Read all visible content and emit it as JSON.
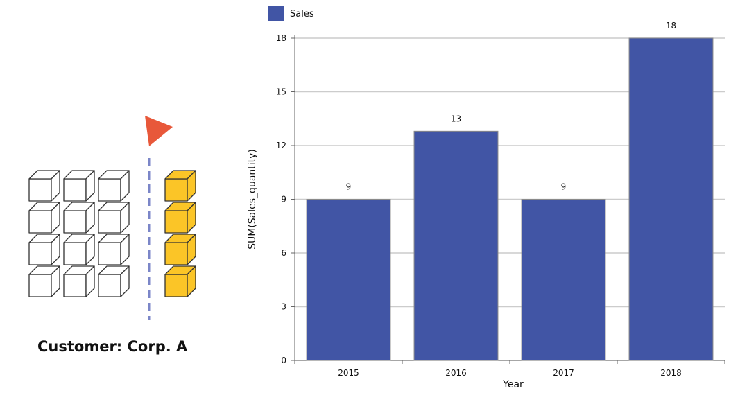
{
  "illustration": {
    "customer_label": "Customer: Corp. A",
    "cube_grid": {
      "rows": 4,
      "columns": 3
    },
    "highlighted_cubes": 4,
    "colors": {
      "flag": "#e8583a",
      "divider": "#7b86c8",
      "highlight": "#fbc527",
      "outline": "#333333"
    }
  },
  "chart_data": {
    "type": "bar",
    "categories": [
      "2015",
      "2016",
      "2017",
      "2018"
    ],
    "series": [
      {
        "name": "Sales",
        "values": [
          9,
          12.8,
          9,
          18
        ]
      }
    ],
    "data_labels": [
      "9",
      "13",
      "9",
      "18"
    ],
    "xlabel": "Year",
    "ylabel": "SUM(Sales_quantity)",
    "ylim": [
      0,
      18
    ],
    "yticks": [
      0,
      3,
      6,
      9,
      12,
      15,
      18
    ],
    "grid": true,
    "legend": "top-left",
    "colors": {
      "bar": "#4155a5",
      "grid": "#cccccc"
    }
  }
}
